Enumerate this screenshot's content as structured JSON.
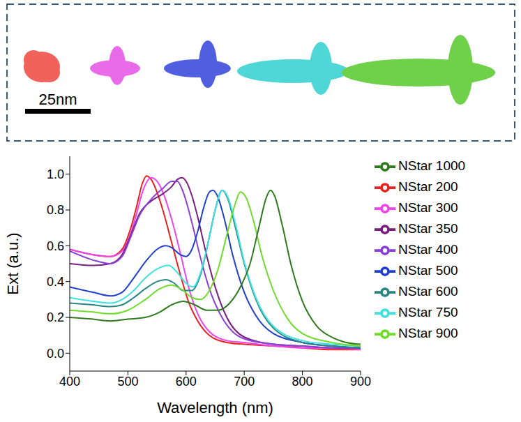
{
  "chart_data": {
    "type": "line",
    "x_label": "Wavelength (nm)",
    "y_label": "Ext (a.u.)",
    "xlim": [
      400,
      900
    ],
    "xticks": [
      400,
      500,
      600,
      700,
      800,
      900
    ],
    "ylim": [
      -0.1,
      1.1
    ],
    "yticks": [
      {
        "value": 0,
        "label": "0.0"
      },
      {
        "value": 0.2,
        "label": "0.2"
      },
      {
        "value": 0.4,
        "label": "0.4"
      },
      {
        "value": 0.6,
        "label": "0.6"
      },
      {
        "value": 0.8,
        "label": "0.8"
      },
      {
        "value": 1,
        "label": "1.0"
      }
    ],
    "grid": false,
    "legend": "right",
    "annotations": [
      {
        "text": "25nm"
      }
    ],
    "series": [
      {
        "name": "NStar 200",
        "color": "#e8231f",
        "x": [
          400,
          440,
          470,
          490,
          505,
          515,
          525,
          532,
          540,
          550,
          560,
          575,
          590,
          605,
          620,
          640,
          670,
          700,
          750,
          800,
          850,
          900
        ],
        "values": [
          0.58,
          0.55,
          0.54,
          0.58,
          0.7,
          0.82,
          0.95,
          0.99,
          0.97,
          0.9,
          0.8,
          0.62,
          0.44,
          0.28,
          0.18,
          0.1,
          0.06,
          0.05,
          0.04,
          0.03,
          0.02,
          0.02
        ]
      },
      {
        "name": "NStar 300",
        "color": "#ee44ee",
        "x": [
          400,
          440,
          470,
          490,
          505,
          515,
          525,
          540,
          550,
          560,
          575,
          590,
          605,
          620,
          640,
          670,
          700,
          750,
          800,
          850,
          900
        ],
        "values": [
          0.58,
          0.55,
          0.54,
          0.57,
          0.67,
          0.78,
          0.9,
          0.98,
          0.96,
          0.9,
          0.75,
          0.56,
          0.36,
          0.22,
          0.12,
          0.07,
          0.06,
          0.04,
          0.03,
          0.03,
          0.02
        ]
      },
      {
        "name": "NStar 350",
        "color": "#7a1e7e",
        "x": [
          400,
          440,
          470,
          490,
          505,
          520,
          540,
          560,
          575,
          585,
          593,
          600,
          610,
          620,
          635,
          650,
          670,
          700,
          750,
          800,
          850,
          900
        ],
        "values": [
          0.5,
          0.49,
          0.5,
          0.55,
          0.66,
          0.78,
          0.85,
          0.89,
          0.93,
          0.97,
          0.98,
          0.96,
          0.88,
          0.76,
          0.55,
          0.37,
          0.2,
          0.09,
          0.05,
          0.04,
          0.03,
          0.03
        ]
      },
      {
        "name": "NStar 400",
        "color": "#8a3fd8",
        "x": [
          400,
          440,
          470,
          490,
          505,
          520,
          540,
          560,
          575,
          585,
          595,
          610,
          625,
          640,
          660,
          680,
          700,
          750,
          800,
          850,
          900
        ],
        "values": [
          0.57,
          0.52,
          0.5,
          0.54,
          0.65,
          0.77,
          0.86,
          0.92,
          0.96,
          0.96,
          0.9,
          0.73,
          0.53,
          0.36,
          0.21,
          0.12,
          0.08,
          0.05,
          0.04,
          0.03,
          0.03
        ]
      },
      {
        "name": "NStar 500",
        "color": "#1f3fd0",
        "x": [
          400,
          440,
          470,
          490,
          510,
          530,
          550,
          565,
          575,
          590,
          600,
          610,
          620,
          630,
          640,
          646,
          655,
          665,
          680,
          700,
          720,
          750,
          800,
          850,
          900
        ],
        "values": [
          0.37,
          0.34,
          0.32,
          0.34,
          0.42,
          0.51,
          0.58,
          0.6,
          0.59,
          0.55,
          0.54,
          0.58,
          0.68,
          0.81,
          0.9,
          0.91,
          0.87,
          0.76,
          0.55,
          0.34,
          0.21,
          0.11,
          0.06,
          0.04,
          0.03
        ]
      },
      {
        "name": "NStar 600",
        "color": "#2a8585",
        "x": [
          400,
          440,
          470,
          490,
          510,
          530,
          550,
          565,
          580,
          595,
          610,
          625,
          640,
          650,
          662,
          672,
          685,
          700,
          720,
          750,
          800,
          850,
          900
        ],
        "values": [
          0.28,
          0.27,
          0.26,
          0.27,
          0.31,
          0.36,
          0.4,
          0.41,
          0.39,
          0.35,
          0.35,
          0.44,
          0.65,
          0.8,
          0.91,
          0.86,
          0.7,
          0.5,
          0.3,
          0.14,
          0.06,
          0.04,
          0.03
        ]
      },
      {
        "name": "NStar 750",
        "color": "#3ee0e0",
        "x": [
          400,
          440,
          470,
          490,
          510,
          530,
          550,
          570,
          585,
          600,
          612,
          625,
          640,
          650,
          662,
          672,
          685,
          700,
          720,
          750,
          800,
          850,
          900
        ],
        "values": [
          0.31,
          0.29,
          0.28,
          0.3,
          0.35,
          0.42,
          0.47,
          0.49,
          0.45,
          0.39,
          0.37,
          0.45,
          0.65,
          0.8,
          0.91,
          0.87,
          0.72,
          0.51,
          0.31,
          0.15,
          0.07,
          0.05,
          0.04
        ]
      },
      {
        "name": "NStar 900",
        "color": "#6fdc2a",
        "x": [
          400,
          440,
          470,
          500,
          530,
          555,
          575,
          595,
          610,
          625,
          640,
          655,
          670,
          685,
          693,
          703,
          715,
          730,
          750,
          775,
          800,
          850,
          900
        ],
        "values": [
          0.24,
          0.23,
          0.22,
          0.24,
          0.3,
          0.36,
          0.38,
          0.35,
          0.31,
          0.3,
          0.35,
          0.47,
          0.66,
          0.84,
          0.9,
          0.87,
          0.75,
          0.55,
          0.35,
          0.19,
          0.11,
          0.06,
          0.04
        ]
      },
      {
        "name": "NStar 1000",
        "color": "#2f7a1e",
        "x": [
          400,
          440,
          470,
          500,
          530,
          555,
          575,
          595,
          615,
          635,
          655,
          675,
          695,
          710,
          725,
          738,
          745,
          752,
          765,
          780,
          800,
          825,
          850,
          875,
          900
        ],
        "values": [
          0.2,
          0.19,
          0.18,
          0.19,
          0.2,
          0.23,
          0.27,
          0.29,
          0.27,
          0.24,
          0.24,
          0.28,
          0.38,
          0.5,
          0.7,
          0.87,
          0.91,
          0.88,
          0.72,
          0.5,
          0.29,
          0.15,
          0.09,
          0.06,
          0.05
        ]
      }
    ]
  }
}
